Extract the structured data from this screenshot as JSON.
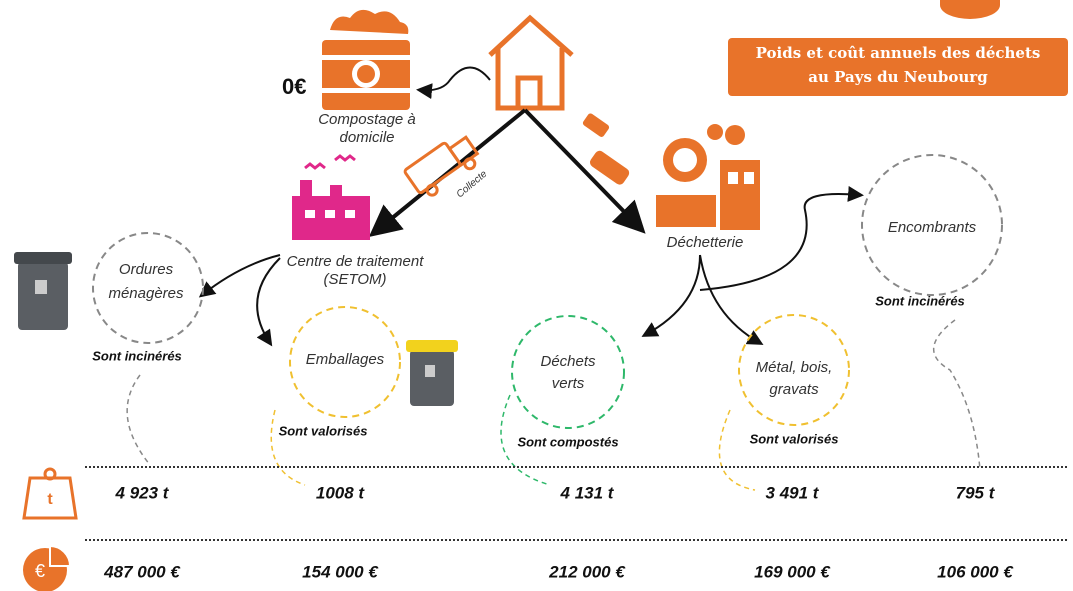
{
  "header": {
    "title": [
      "Poids et coût annuels des déchets",
      "au Pays du Neubourg"
    ]
  },
  "compost": {
    "cost": "0€",
    "label": [
      "Compostage à",
      "domicile"
    ]
  },
  "collecte": "Collecte",
  "treatment": {
    "label": [
      "Centre de traitement",
      "(SETOM)"
    ]
  },
  "dechetterie": "Déchetterie",
  "streams": [
    {
      "name": [
        "Ordures",
        "ménagères"
      ],
      "fate": "Sont incinérés",
      "weight": "4 923 t",
      "cost": "487 000 €"
    },
    {
      "name": [
        "Emballages"
      ],
      "fate": "Sont valorisés",
      "weight": "1008 t",
      "cost": "154 000 €"
    },
    {
      "name": [
        "Déchets",
        "verts"
      ],
      "fate": "Sont compostés",
      "weight": "4 131 t",
      "cost": "212 000 €"
    },
    {
      "name": [
        "Métal, bois,",
        "gravats"
      ],
      "fate": "Sont valorisés",
      "weight": "3 491 t",
      "cost": "169 000 €"
    },
    {
      "name": [
        "Encombrants"
      ],
      "fate": "Sont incinérés",
      "weight": "795 t",
      "cost": "106 000 €"
    }
  ],
  "icons": {
    "weight": "t",
    "cost": "€"
  }
}
